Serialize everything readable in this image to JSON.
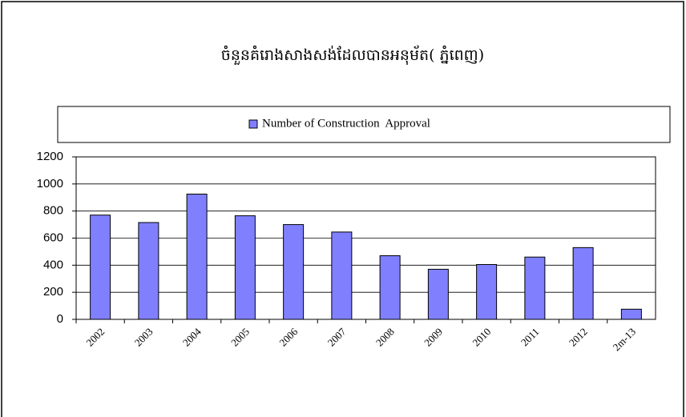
{
  "chart_data": {
    "type": "bar",
    "title": "ចំនួនគំរោងសាងសង់ដែលបានអនុម័ត( ភ្នំពេញ)",
    "categories": [
      "2002",
      "2003",
      "2004",
      "2005",
      "2006",
      "2007",
      "2008",
      "2009",
      "2010",
      "2011",
      "2012",
      "2m-13"
    ],
    "series": [
      {
        "name": "Number of Construction  Approval",
        "color": "#8080ff",
        "values": [
          770,
          715,
          925,
          765,
          700,
          645,
          470,
          370,
          405,
          460,
          530,
          75
        ]
      }
    ],
    "ylim": [
      0,
      1200
    ],
    "yticks": [
      0,
      200,
      400,
      600,
      800,
      1000,
      1200
    ],
    "grid": true,
    "legend": "top"
  }
}
